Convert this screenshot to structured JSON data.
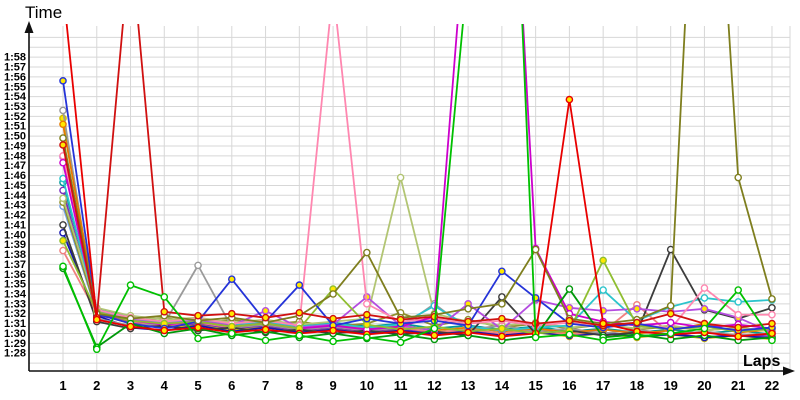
{
  "chart_data": {
    "type": "line",
    "title": "",
    "xlabel": "Laps",
    "ylabel": "Time",
    "x_ticks": [
      1,
      2,
      3,
      4,
      5,
      6,
      7,
      8,
      9,
      10,
      11,
      12,
      13,
      14,
      15,
      16,
      17,
      18,
      19,
      20,
      21,
      22
    ],
    "y_ticks": [
      "1:28",
      "1:29",
      "1:30",
      "1:31",
      "1:32",
      "1:33",
      "1:34",
      "1:35",
      "1:36",
      "1:37",
      "1:38",
      "1:39",
      "1:40",
      "1:41",
      "1:42",
      "1:43",
      "1:44",
      "1:45",
      "1:46",
      "1:47",
      "1:48",
      "1:49",
      "1:50",
      "1:51",
      "1:52",
      "1:53",
      "1:54",
      "1:55",
      "1:56",
      "1:57",
      "1:58"
    ],
    "ylim": [
      "1:27",
      "2:00"
    ],
    "grid": true,
    "legend": "none",
    "marker": "circle",
    "note": "lap time in seconds per lap; values above 120s run off the top of the plot (pit laps)",
    "series": [
      {
        "name": "yellow",
        "color": "#cdbd00",
        "marker_fill": "#ffe800",
        "laps_seconds": [
          111.8,
          92.0,
          91.0,
          90.6,
          90.9,
          90.4,
          90.7,
          90.2,
          90.5,
          90.1,
          90.4,
          89.9,
          90.2,
          89.8,
          90.1,
          89.7,
          90.0,
          89.6,
          89.9,
          89.5,
          89.8,
          89.4
        ]
      },
      {
        "name": "sky-blue",
        "color": "#6f9fe8",
        "marker_fill": "#ffffff",
        "laps_seconds": [
          102.9,
          92.1,
          91.2,
          90.9,
          91.1,
          90.6,
          90.9,
          90.4,
          90.7,
          90.3,
          90.6,
          90.1,
          90.4,
          90.0,
          90.3,
          89.9,
          90.1,
          89.7,
          90.0,
          89.6,
          89.9,
          89.5
        ]
      },
      {
        "name": "teal",
        "color": "#009898",
        "marker_fill": "#ffffff",
        "laps_seconds": [
          105.3,
          92.5,
          91.6,
          91.2,
          91.5,
          91.0,
          91.3,
          90.8,
          91.1,
          90.7,
          91.0,
          90.5,
          90.8,
          90.4,
          90.7,
          90.2,
          90.5,
          90.1,
          90.4,
          90.0,
          90.3,
          89.9
        ]
      },
      {
        "name": "purple",
        "color": "#7b2fbe",
        "marker_fill": "#ffffff",
        "laps_seconds": [
          104.5,
          91.9,
          91.1,
          90.7,
          91.0,
          90.5,
          90.8,
          90.3,
          90.6,
          90.2,
          90.5,
          90.0,
          90.3,
          89.9,
          90.2,
          89.8,
          90.1,
          89.7,
          90.0,
          89.6,
          89.9,
          89.7
        ]
      },
      {
        "name": "navy",
        "color": "#1515b0",
        "marker_fill": "#ffffff",
        "laps_seconds": [
          100.2,
          91.8,
          90.6,
          90.3,
          90.8,
          90.2,
          90.6,
          90.1,
          90.4,
          90.0,
          90.3,
          89.9,
          90.2,
          89.8,
          90.1,
          89.8,
          90.0,
          89.7,
          89.9,
          89.6,
          89.8,
          89.5
        ]
      },
      {
        "name": "salmon",
        "color": "#f08080",
        "marker_fill": "#ffffff",
        "laps_seconds": [
          98.4,
          92.0,
          91.2,
          90.8,
          91.1,
          90.6,
          90.9,
          90.4,
          90.7,
          90.3,
          90.6,
          90.1,
          90.4,
          90.0,
          90.3,
          89.9,
          90.2,
          92.9,
          89.9,
          90.2,
          89.8,
          90.0
        ]
      },
      {
        "name": "olive-light",
        "color": "#8f8f2e",
        "marker_fill": "#ffffff",
        "laps_seconds": [
          103.3,
          92.2,
          91.2,
          91.6,
          91.0,
          91.4,
          90.9,
          91.2,
          90.7,
          91.0,
          92.1,
          90.8,
          91.4,
          90.6,
          91.0,
          90.5,
          90.9,
          90.4,
          90.7,
          90.3,
          90.6,
          90.2
        ]
      },
      {
        "name": "gray",
        "color": "#9a9a9a",
        "marker_fill": "#ffffff",
        "laps_seconds": [
          112.6,
          91.5,
          90.8,
          91.0,
          96.9,
          90.6,
          90.9,
          90.4,
          90.7,
          90.3,
          90.6,
          93.0,
          90.4,
          90.8,
          90.2,
          90.5,
          90.0,
          90.4,
          89.9,
          90.2,
          89.8,
          90.0
        ]
      },
      {
        "name": "orange",
        "color": "#e87a00",
        "marker_fill": "#ffe800",
        "laps_seconds": [
          111.2,
          92.3,
          91.4,
          91.0,
          91.3,
          90.8,
          91.1,
          90.6,
          90.9,
          90.5,
          90.8,
          90.3,
          90.6,
          90.2,
          90.5,
          90.1,
          90.4,
          90.0,
          90.3,
          91.0,
          90.1,
          90.4
        ]
      },
      {
        "name": "yellow-green-pale",
        "color": "#b2c573",
        "marker_fill": "#ffffff",
        "laps_seconds": [
          103.7,
          92.6,
          91.8,
          91.4,
          91.6,
          91.1,
          91.4,
          90.9,
          91.2,
          91.5,
          105.8,
          92.0,
          91.2,
          90.8,
          91.1,
          90.6,
          90.9,
          90.5,
          90.8,
          90.3,
          90.6,
          90.2
        ]
      },
      {
        "name": "cyan",
        "color": "#2cc4cc",
        "marker_fill": "#ffffff",
        "laps_seconds": [
          105.7,
          92.3,
          91.5,
          91.1,
          91.4,
          90.9,
          91.2,
          90.7,
          91.0,
          90.6,
          90.9,
          92.8,
          90.7,
          90.3,
          90.6,
          90.8,
          94.4,
          91.3,
          92.7,
          93.6,
          93.2,
          93.4
        ]
      },
      {
        "name": "dark-gray",
        "color": "#3c3c3c",
        "marker_fill": "#ffffff",
        "laps_seconds": [
          101.0,
          91.2,
          90.5,
          90.8,
          90.3,
          90.6,
          90.1,
          90.4,
          90.0,
          90.3,
          89.9,
          90.2,
          89.8,
          93.7,
          90.0,
          90.3,
          89.8,
          90.1,
          98.5,
          92.4,
          91.5,
          92.6
        ]
      },
      {
        "name": "violet",
        "color": "#b44ce0",
        "marker_fill": "#ffe800",
        "laps_seconds": [
          107.9,
          92.2,
          91.4,
          91.0,
          91.3,
          90.8,
          92.3,
          90.6,
          90.9,
          93.7,
          90.8,
          90.3,
          93.0,
          90.4,
          93.4,
          92.6,
          92.3,
          92.5,
          92.2,
          92.5,
          91.6,
          90.1
        ]
      },
      {
        "name": "pink",
        "color": "#ff87b0",
        "marker_fill": "#ffffff",
        "laps_seconds": [
          108.0,
          92.4,
          91.6,
          91.2,
          91.5,
          91.0,
          91.3,
          90.8,
          125.0,
          93.0,
          91.2,
          91.5,
          91.0,
          91.3,
          90.8,
          91.1,
          90.6,
          91.0,
          90.5,
          94.6,
          91.9,
          91.9
        ]
      },
      {
        "name": "magenta",
        "color": "#cc00cc",
        "marker_fill": "#ffffff",
        "laps_seconds": [
          107.3,
          92.1,
          91.3,
          90.9,
          91.2,
          90.7,
          91.0,
          90.5,
          90.8,
          90.4,
          90.7,
          91.7,
          135.0,
          160.0,
          98.6,
          92.0,
          91.2,
          90.8,
          91.1,
          90.6,
          90.9,
          90.5
        ]
      },
      {
        "name": "yellow-green",
        "color": "#8fbe30",
        "marker_fill": "#ffe800",
        "laps_seconds": [
          99.4,
          92.2,
          91.3,
          91.0,
          91.2,
          90.7,
          91.0,
          90.5,
          94.5,
          90.9,
          90.4,
          90.7,
          90.2,
          90.5,
          90.0,
          90.3,
          97.4,
          90.8,
          90.4,
          90.7,
          90.2,
          90.5
        ]
      },
      {
        "name": "blue",
        "color": "#2433d8",
        "marker_fill": "#ffe800",
        "laps_seconds": [
          115.6,
          92.0,
          91.0,
          90.5,
          91.2,
          95.5,
          91.2,
          94.9,
          90.8,
          91.5,
          91.0,
          91.3,
          90.8,
          96.3,
          93.6,
          91.0,
          90.6,
          91.0,
          90.4,
          90.8,
          90.3,
          90.6
        ]
      },
      {
        "name": "olive",
        "color": "#7e7e1e",
        "marker_fill": "#ffffff",
        "laps_seconds": [
          109.8,
          92.0,
          91.5,
          91.8,
          91.3,
          91.6,
          91.1,
          91.8,
          94.0,
          98.2,
          91.6,
          91.9,
          92.5,
          93.0,
          98.5,
          91.5,
          91.0,
          91.4,
          92.8,
          160.0,
          105.8,
          93.5
        ]
      },
      {
        "name": "green-dark",
        "color": "#00980a",
        "marker_fill": "#ffffff",
        "laps_seconds": [
          96.6,
          88.6,
          91.0,
          90.0,
          90.5,
          89.8,
          90.2,
          89.6,
          90.0,
          89.5,
          89.9,
          89.4,
          89.8,
          89.3,
          89.7,
          94.5,
          89.6,
          89.9,
          89.4,
          89.8,
          89.3,
          89.6
        ]
      },
      {
        "name": "red-dark",
        "color": "#d01010",
        "marker_fill": "#ffe800",
        "laps_seconds": [
          109.1,
          91.6,
          130.0,
          92.2,
          91.8,
          92.0,
          91.6,
          92.1,
          91.5,
          91.9,
          91.4,
          91.7,
          91.2,
          91.5,
          91.0,
          91.3,
          90.8,
          91.1,
          92.0,
          91.0,
          90.6,
          91.0
        ]
      },
      {
        "name": "red",
        "color": "#e80000",
        "marker_fill": "#ffe800",
        "laps_seconds": [
          125.0,
          91.4,
          90.7,
          90.3,
          90.6,
          90.1,
          90.4,
          90.0,
          90.3,
          89.9,
          90.2,
          89.8,
          90.1,
          89.7,
          90.0,
          113.7,
          91.0,
          90.2,
          89.9,
          90.1,
          89.7,
          90.0
        ]
      },
      {
        "name": "green",
        "color": "#00c000",
        "marker_fill": "#ffffff",
        "laps_seconds": [
          96.8,
          88.4,
          94.9,
          93.7,
          89.5,
          90.0,
          89.3,
          89.8,
          89.2,
          89.6,
          89.1,
          90.5,
          127.0,
          170.0,
          89.6,
          89.9,
          89.3,
          89.7,
          90.0,
          90.5,
          94.4,
          89.3
        ]
      }
    ]
  },
  "axis_titles": {
    "y": "Time",
    "x": "Laps"
  }
}
